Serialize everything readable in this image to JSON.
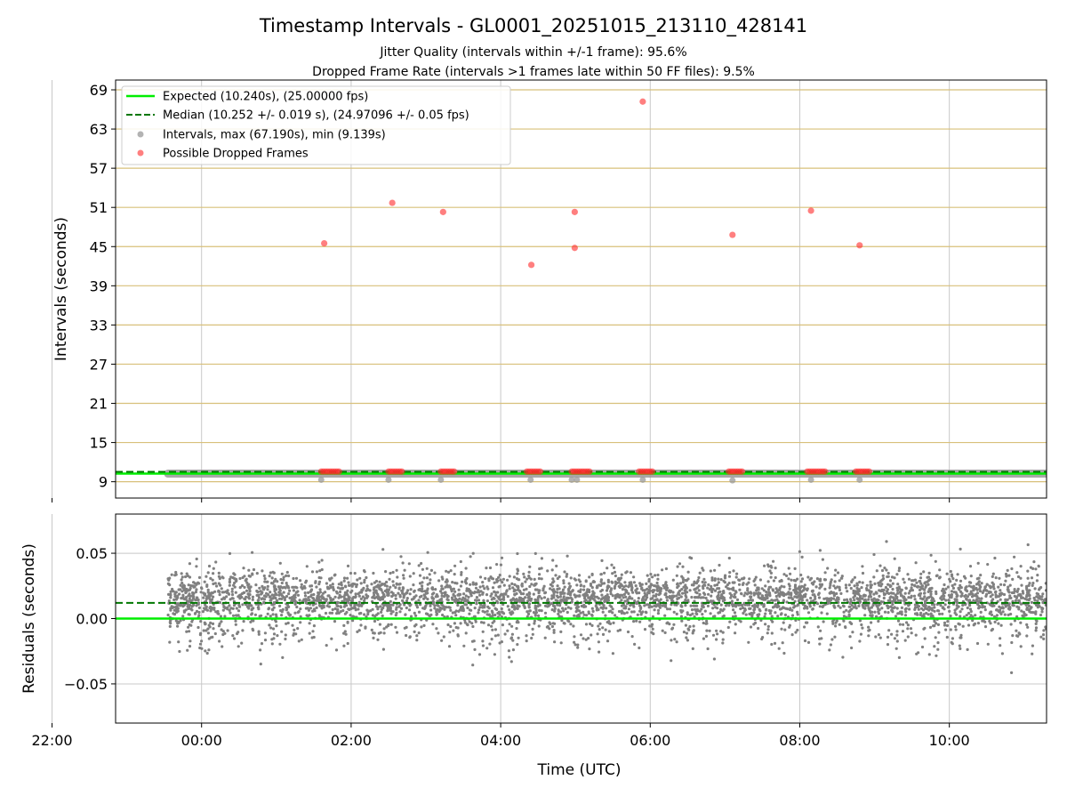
{
  "title": "Timestamp Intervals - GL0001_20251015_213110_428141",
  "subtitle_lines": [
    "Jitter Quality (intervals within +/-1 frame): 95.6%",
    "Dropped Frame Rate (intervals >1 frames late within 50 FF files): 9.5%"
  ],
  "colors": {
    "expected": "#00ee00",
    "median": "#007700",
    "intervals": "#999999",
    "dropped": "#ff2a2a",
    "residuals": "#808080",
    "grid": "#c8c8c8",
    "hband": "#d8c07a"
  },
  "chart_data": [
    {
      "type": "scatter",
      "title": "Timestamp Intervals - GL0001_20251015_213110_428141",
      "xlabel": "",
      "ylabel": "Intervals (seconds)",
      "ylim": [
        6.5,
        70.5
      ],
      "yticks": [
        9,
        15,
        21,
        27,
        33,
        39,
        45,
        51,
        57,
        63,
        69
      ],
      "xlim": [
        -1.15,
        11.3
      ],
      "x_unit": "hours relative to 00:00 UTC (negative = previous day)",
      "xticks": [
        -2,
        0,
        2,
        4,
        6,
        8,
        10
      ],
      "grid": true,
      "legend_position": "upper-left",
      "legend": [
        "Expected (10.240s), (25.00000 fps)",
        "Median (10.252 +/- 0.019 s), (24.97096 +/- 0.05 fps)",
        "Intervals, max (67.190s), min (9.139s)",
        "Possible Dropped Frames"
      ],
      "expected": 10.24,
      "median": 10.252,
      "intervals_x_range": [
        -0.45,
        11.3
      ],
      "dropped_frames_high": [
        {
          "x": 1.64,
          "y": 45.5
        },
        {
          "x": 2.55,
          "y": 51.7
        },
        {
          "x": 3.23,
          "y": 50.3
        },
        {
          "x": 4.41,
          "y": 42.2
        },
        {
          "x": 4.99,
          "y": 50.3
        },
        {
          "x": 4.99,
          "y": 44.8
        },
        {
          "x": 5.9,
          "y": 67.2
        },
        {
          "x": 7.1,
          "y": 46.8
        },
        {
          "x": 8.15,
          "y": 50.5
        },
        {
          "x": 8.8,
          "y": 45.2
        }
      ],
      "dropped_clusters_low": [
        {
          "x0": 1.6,
          "x1": 1.85,
          "y": 10.55
        },
        {
          "x0": 2.5,
          "x1": 2.7,
          "y": 10.55
        },
        {
          "x0": 3.2,
          "x1": 3.4,
          "y": 10.55
        },
        {
          "x0": 4.35,
          "x1": 4.55,
          "y": 10.55
        },
        {
          "x0": 4.95,
          "x1": 5.2,
          "y": 10.55
        },
        {
          "x0": 5.85,
          "x1": 6.05,
          "y": 10.55
        },
        {
          "x0": 7.05,
          "x1": 7.25,
          "y": 10.55
        },
        {
          "x0": 8.1,
          "x1": 8.35,
          "y": 10.55
        },
        {
          "x0": 8.75,
          "x1": 8.95,
          "y": 10.55
        }
      ],
      "low_intervals": [
        {
          "x": 1.6,
          "y": 9.3
        },
        {
          "x": 2.5,
          "y": 9.3
        },
        {
          "x": 3.2,
          "y": 9.3
        },
        {
          "x": 4.4,
          "y": 9.3
        },
        {
          "x": 4.95,
          "y": 9.3
        },
        {
          "x": 5.02,
          "y": 9.3
        },
        {
          "x": 5.9,
          "y": 9.3
        },
        {
          "x": 7.1,
          "y": 9.2
        },
        {
          "x": 8.15,
          "y": 9.3
        },
        {
          "x": 8.8,
          "y": 9.3
        }
      ]
    },
    {
      "type": "scatter",
      "xlabel": "Time (UTC)",
      "ylabel": "Residuals (seconds)",
      "ylim": [
        -0.08,
        0.08
      ],
      "yticks": [
        -0.05,
        0.0,
        0.05
      ],
      "ytick_labels": [
        "−0.05",
        "0.00",
        "0.05"
      ],
      "xlim": [
        -1.15,
        11.3
      ],
      "xticks": [
        -2,
        0,
        2,
        4,
        6,
        8,
        10
      ],
      "xtick_labels": [
        "22:00",
        "00:00",
        "02:00",
        "04:00",
        "06:00",
        "08:00",
        "10:00"
      ],
      "grid": true,
      "expected_residual": 0.0,
      "median_residual": 0.012,
      "residual_spread": {
        "center": 0.01,
        "typical_min": -0.035,
        "typical_max": 0.045,
        "extreme_min": -0.057,
        "extreme_max": 0.075
      },
      "x_range": [
        -0.45,
        11.3
      ],
      "point_count_approx": 4200
    }
  ]
}
